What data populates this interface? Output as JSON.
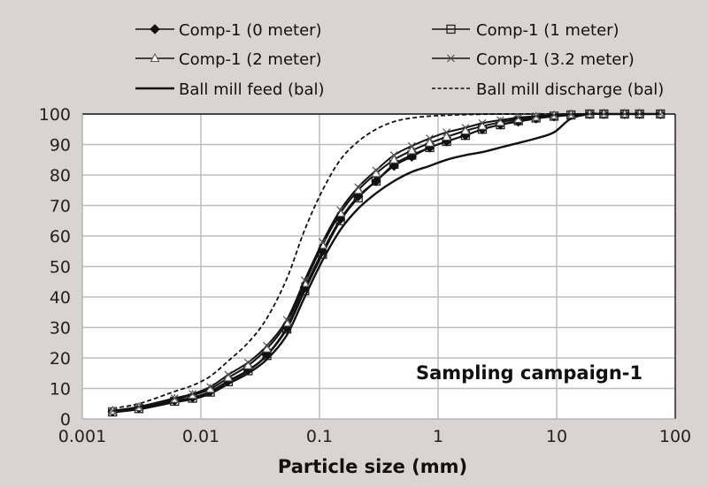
{
  "chart_data": {
    "type": "line",
    "title": "",
    "xlabel": "Particle size (mm)",
    "ylabel": "",
    "xscale": "log",
    "xlim": [
      0.001,
      100
    ],
    "ylim": [
      0,
      100
    ],
    "grid": true,
    "legend_position": "top",
    "annotation": "Sampling campaign-1",
    "x_ticks": [
      "0.001",
      "0.01",
      "0.1",
      "1",
      "10",
      "100"
    ],
    "y_ticks": [
      "0",
      "10",
      "20",
      "30",
      "40",
      "50",
      "60",
      "70",
      "80",
      "90",
      "100"
    ],
    "x": [
      0.0018,
      0.003,
      0.006,
      0.0085,
      0.012,
      0.017,
      0.025,
      0.036,
      0.053,
      0.075,
      0.106,
      0.15,
      0.212,
      0.3,
      0.425,
      0.6,
      0.85,
      1.18,
      1.7,
      2.36,
      3.35,
      4.75,
      6.7,
      9.5,
      13.2,
      19,
      25,
      37.5,
      50,
      75
    ],
    "series": [
      {
        "name": "Comp-1 (0 meter)",
        "marker": "diamond",
        "style": "solid",
        "values": [
          2.5,
          3.5,
          6,
          7,
          9,
          12.5,
          16,
          21,
          30,
          43,
          55,
          65.5,
          73,
          78,
          83,
          86,
          89,
          91,
          93,
          95,
          96.5,
          97.5,
          98.5,
          99.2,
          99.6,
          100,
          100,
          100,
          100,
          100
        ]
      },
      {
        "name": "Comp-1 (1 meter)",
        "marker": "square",
        "style": "solid",
        "values": [
          2.3,
          3.4,
          5.8,
          6.8,
          8.8,
          12.2,
          15.8,
          20.8,
          29.5,
          42,
          54,
          65,
          72.5,
          78,
          83.5,
          86.5,
          89,
          91,
          93,
          95,
          96.5,
          97.8,
          98.7,
          99.3,
          99.7,
          100,
          100,
          100,
          100,
          100
        ]
      },
      {
        "name": "Comp-1 (2 meter)",
        "marker": "triangle",
        "style": "solid",
        "values": [
          2.6,
          3.8,
          6.5,
          7.8,
          9.8,
          13.5,
          17.5,
          23,
          31.5,
          44.5,
          57,
          67.5,
          75,
          80.5,
          85,
          88,
          90.5,
          92.5,
          94.5,
          96,
          97.3,
          98.3,
          99,
          99.5,
          99.8,
          100,
          100,
          100,
          100,
          100
        ]
      },
      {
        "name": "Comp-1 (3.2 meter)",
        "marker": "x",
        "style": "solid",
        "values": [
          2.7,
          4,
          6.8,
          8.2,
          10.5,
          14.5,
          18.5,
          24,
          32.5,
          45.5,
          58,
          68.5,
          76,
          81.5,
          86.5,
          89.5,
          92,
          94,
          95.5,
          97,
          98,
          98.8,
          99.3,
          99.7,
          99.9,
          100,
          100,
          100,
          100,
          100
        ]
      },
      {
        "name": "Ball mill feed (bal)",
        "marker": "none",
        "style": "solid-thick",
        "values": [
          2.2,
          3.2,
          5.5,
          6.5,
          8.3,
          11.5,
          15,
          19.5,
          27.5,
          40,
          52,
          62,
          69,
          74,
          78,
          81,
          83,
          85,
          86.5,
          87.5,
          89,
          90.5,
          92,
          94,
          98.5,
          100,
          100,
          100,
          100,
          100
        ]
      },
      {
        "name": "Ball mill discharge (bal)",
        "marker": "none",
        "style": "dashed",
        "values": [
          3.5,
          5,
          9,
          11,
          14,
          19,
          25,
          33,
          46,
          62,
          75,
          85,
          91,
          95,
          97.5,
          98.7,
          99.3,
          99.6,
          99.8,
          99.9,
          100,
          100,
          100,
          100,
          100,
          100,
          100,
          100,
          100,
          100
        ]
      }
    ]
  }
}
